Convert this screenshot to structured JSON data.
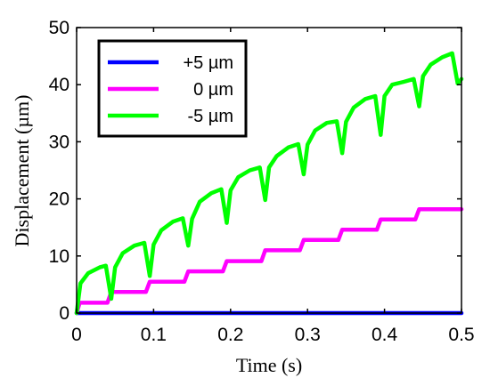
{
  "chart_data": {
    "type": "line",
    "title": "",
    "xlabel": "Time (s)",
    "ylabel": "Displacement (µm)",
    "xlim": [
      0,
      0.5
    ],
    "ylim": [
      0,
      50
    ],
    "xticks": [
      0,
      0.1,
      0.2,
      0.3,
      0.4,
      0.5
    ],
    "xtick_labels": [
      "0",
      "0.1",
      "0.2",
      "0.3",
      "0.4",
      "0.5"
    ],
    "yticks": [
      0,
      10,
      20,
      30,
      40,
      50
    ],
    "ytick_labels": [
      "0",
      "10",
      "20",
      "30",
      "40",
      "50"
    ],
    "grid": false,
    "legend_position": "top-left",
    "series": [
      {
        "name": "+5 µm",
        "color": "#0000ff",
        "x": [
          0,
          0.5
        ],
        "y": [
          0,
          0
        ]
      },
      {
        "name": "0 µm",
        "color": "#ff00ff",
        "x": [
          0,
          0.004,
          0.04,
          0.045,
          0.09,
          0.095,
          0.14,
          0.145,
          0.19,
          0.195,
          0.24,
          0.245,
          0.29,
          0.295,
          0.34,
          0.345,
          0.39,
          0.395,
          0.44,
          0.445,
          0.49,
          0.495,
          0.5
        ],
        "y": [
          0,
          1.8,
          1.8,
          3.7,
          3.7,
          5.5,
          5.5,
          7.3,
          7.3,
          9.1,
          9.1,
          11,
          11,
          12.8,
          12.8,
          14.6,
          14.6,
          16.4,
          16.4,
          18.2,
          18.2,
          18.2,
          18.2
        ]
      },
      {
        "name": "-5 µm",
        "color": "#00ff00",
        "x": [
          0,
          0.005,
          0.015,
          0.03,
          0.038,
          0.045,
          0.05,
          0.06,
          0.075,
          0.088,
          0.095,
          0.1,
          0.11,
          0.125,
          0.138,
          0.145,
          0.15,
          0.16,
          0.175,
          0.188,
          0.195,
          0.2,
          0.21,
          0.225,
          0.238,
          0.245,
          0.25,
          0.26,
          0.275,
          0.288,
          0.295,
          0.3,
          0.31,
          0.325,
          0.338,
          0.345,
          0.35,
          0.36,
          0.375,
          0.388,
          0.395,
          0.4,
          0.41,
          0.425,
          0.438,
          0.445,
          0.45,
          0.46,
          0.475,
          0.488,
          0.495,
          0.5
        ],
        "y": [
          0,
          5.2,
          7,
          8,
          8.3,
          2.5,
          8,
          10.5,
          11.8,
          12.3,
          6.5,
          12,
          14.5,
          16,
          16.6,
          11.8,
          16.5,
          19.5,
          21,
          21.7,
          15.8,
          21.5,
          23.8,
          25,
          25.5,
          19.8,
          25.5,
          27.5,
          29,
          29.6,
          24.3,
          29.5,
          32,
          33.3,
          33.6,
          28,
          33.5,
          36,
          37.5,
          38,
          31.2,
          38,
          40,
          40.5,
          41,
          36.2,
          41.5,
          43.5,
          44.8,
          45.5,
          40.2,
          41
        ]
      }
    ]
  }
}
